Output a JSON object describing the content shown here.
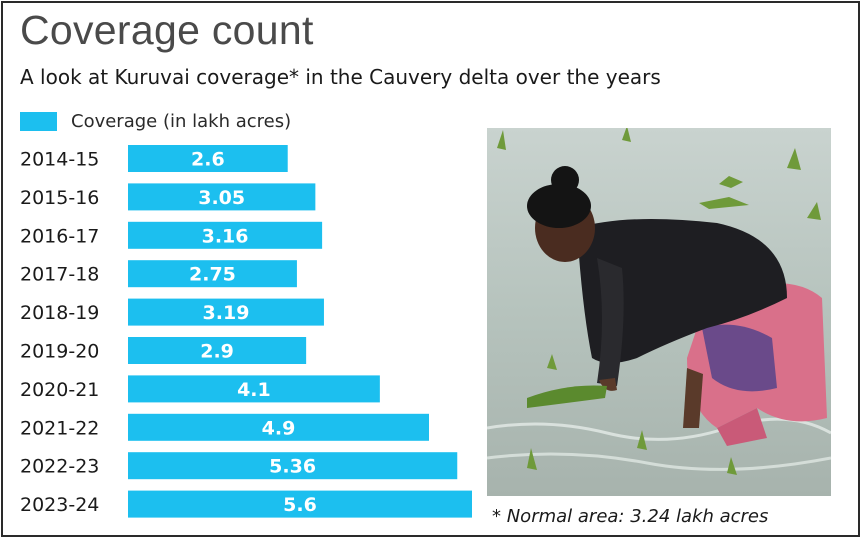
{
  "title": "Coverage count",
  "subtitle": "A look at Kuruvai coverage* in the Cauvery delta over the years",
  "legend": {
    "label": "Coverage (in lakh acres)",
    "color": "#1cbfef"
  },
  "footnote": "* Normal area: 3.24 lakh acres",
  "photo": {
    "icon": "farmer-transplanting-paddy-image"
  },
  "chart_data": {
    "type": "bar",
    "orientation": "horizontal",
    "title": "Coverage count",
    "subtitle": "A look at Kuruvai coverage* in the Cauvery delta over the years",
    "categories": [
      "2014-15",
      "2015-16",
      "2016-17",
      "2017-18",
      "2018-19",
      "2019-20",
      "2020-21",
      "2021-22",
      "2022-23",
      "2023-24"
    ],
    "series": [
      {
        "name": "Coverage (in lakh acres)",
        "values": [
          2.6,
          3.05,
          3.16,
          2.75,
          3.19,
          2.9,
          4.1,
          4.9,
          5.36,
          5.6
        ],
        "color": "#1cbfef"
      }
    ],
    "value_labels": [
      "2.6",
      "3.05",
      "3.16",
      "2.75",
      "3.19",
      "2.9",
      "4.1",
      "4.9",
      "5.36",
      "5.6"
    ],
    "xlim": [
      0,
      5.6
    ],
    "grid": false,
    "legend_position": "top-left"
  }
}
